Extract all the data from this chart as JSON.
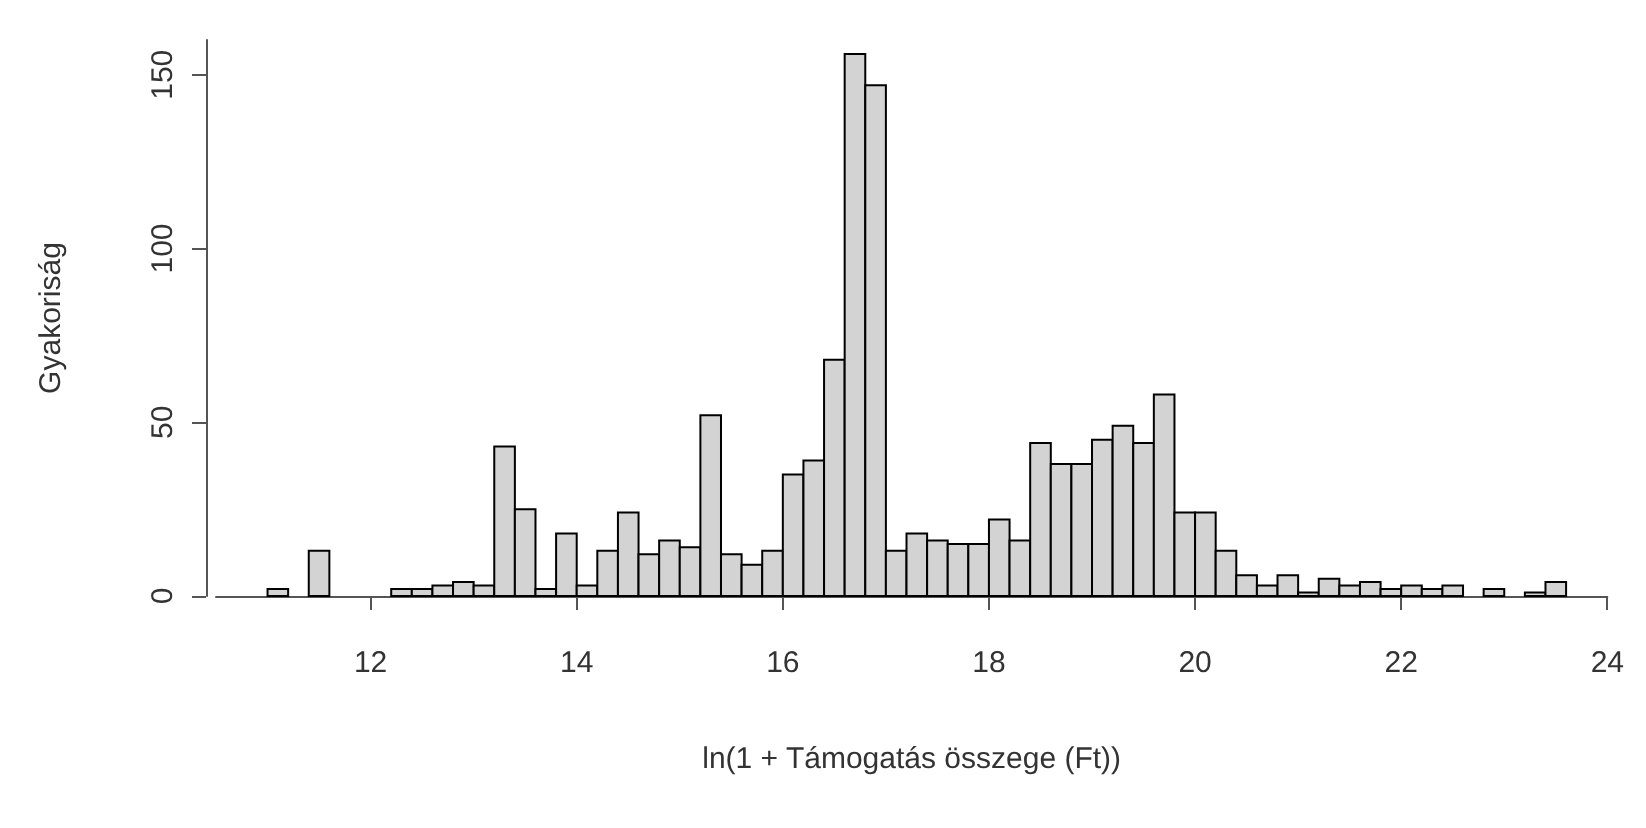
{
  "chart_data": {
    "type": "histogram",
    "xlabel": "ln(1 + Támogatás összege (Ft))",
    "ylabel": "Gyakoriság",
    "color": "#d3d3d3",
    "bins": [
      11.0,
      11.2,
      11.4,
      11.6,
      11.8,
      12.0,
      12.2,
      12.4,
      12.6,
      12.8,
      13.0,
      13.2,
      13.4,
      13.6,
      13.8,
      14.0,
      14.2,
      14.4,
      14.6,
      14.8,
      15.0,
      15.2,
      15.4,
      15.6,
      15.8,
      16.0,
      16.2,
      16.4,
      16.6,
      16.8,
      17.0,
      17.2,
      17.4,
      17.6,
      17.8,
      18.0,
      18.2,
      18.4,
      18.6,
      18.8,
      19.0,
      19.2,
      19.4,
      19.6,
      19.8,
      20.0,
      20.2,
      20.4,
      20.6,
      20.8,
      21.0,
      21.2,
      21.4,
      21.6,
      21.8,
      22.0,
      22.2,
      22.4,
      22.6,
      22.8,
      23.0,
      23.2,
      23.4,
      23.6
    ],
    "values": [
      2,
      0,
      13,
      0,
      0,
      0,
      2,
      2,
      3,
      4,
      3,
      43,
      25,
      2,
      18,
      3,
      13,
      24,
      12,
      16,
      14,
      52,
      12,
      9,
      13,
      35,
      39,
      68,
      156,
      147,
      13,
      18,
      16,
      15,
      15,
      22,
      16,
      44,
      38,
      38,
      45,
      49,
      44,
      58,
      24,
      24,
      13,
      6,
      3,
      6,
      1,
      5,
      3,
      4,
      2,
      3,
      2,
      3,
      0,
      2,
      0,
      1,
      4
    ],
    "xlim": [
      10.5,
      24
    ],
    "xticks": [
      12,
      14,
      16,
      18,
      20,
      22,
      24
    ],
    "ylim": [
      0,
      160
    ],
    "yticks": [
      0,
      50,
      100,
      150
    ]
  }
}
